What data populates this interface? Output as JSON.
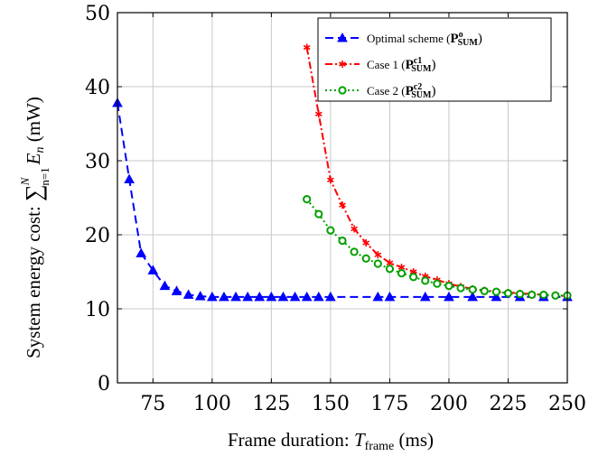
{
  "chart_data": {
    "type": "line",
    "xlabel": "Frame duration: T_frame (ms)",
    "ylabel": "System energy cost: ∑_{n=1}^{N} E_n (mW)",
    "xlim": [
      60,
      250
    ],
    "ylim": [
      0,
      50
    ],
    "x_ticks": [
      75,
      100,
      125,
      150,
      175,
      200,
      225,
      250
    ],
    "y_ticks": [
      0,
      10,
      20,
      30,
      40,
      50
    ],
    "grid": true,
    "legend_position": "top-right",
    "series": [
      {
        "name": "Optimal scheme (P^o_SUM)",
        "name_main": "Optimal scheme (",
        "name_sym": "P",
        "name_sup": "o",
        "name_sub": "SUM",
        "name_close": ")",
        "color": "#0000ff",
        "line_style": "dashed",
        "marker": "triangle",
        "x": [
          60,
          65,
          70,
          75,
          80,
          85,
          90,
          95,
          100,
          105,
          110,
          115,
          120,
          125,
          130,
          135,
          140,
          145,
          150,
          170,
          175,
          190,
          200,
          210,
          220,
          230,
          240,
          250
        ],
        "y": [
          37.8,
          27.5,
          17.5,
          15.2,
          13.1,
          12.4,
          11.9,
          11.7,
          11.6,
          11.6,
          11.6,
          11.6,
          11.6,
          11.6,
          11.6,
          11.6,
          11.6,
          11.6,
          11.6,
          11.6,
          11.6,
          11.6,
          11.6,
          11.6,
          11.6,
          11.6,
          11.6,
          11.6
        ]
      },
      {
        "name": "Case 1 (P^c1_SUM)",
        "name_main": "Case 1 (",
        "name_sym": "P",
        "name_sup": "c1",
        "name_sub": "SUM",
        "name_close": ")",
        "color": "#ff0000",
        "line_style": "dashdot",
        "marker": "star",
        "x": [
          140,
          145,
          150,
          155,
          160,
          165,
          170,
          175,
          180,
          185,
          190,
          195,
          200,
          205,
          210,
          215,
          220,
          225,
          230,
          235,
          240,
          245,
          250
        ],
        "y": [
          45.3,
          36.3,
          27.4,
          24.0,
          20.8,
          18.9,
          17.3,
          16.2,
          15.6,
          15.0,
          14.4,
          13.9,
          13.4,
          13.0,
          12.7,
          12.5,
          12.3,
          12.2,
          12.1,
          12.0,
          11.9,
          11.8,
          11.7
        ]
      },
      {
        "name": "Case 2 (P^c2_SUM)",
        "name_main": "Case 2 (",
        "name_sym": "P",
        "name_sup": "c2",
        "name_sub": "SUM",
        "name_close": ")",
        "color": "#00a000",
        "line_style": "dotted",
        "marker": "circle",
        "x": [
          140,
          145,
          150,
          155,
          160,
          165,
          170,
          175,
          180,
          185,
          190,
          195,
          200,
          205,
          210,
          215,
          220,
          225,
          230,
          235,
          240,
          245,
          250
        ],
        "y": [
          24.8,
          22.8,
          20.6,
          19.2,
          17.7,
          16.8,
          16.1,
          15.4,
          14.8,
          14.3,
          13.8,
          13.4,
          13.1,
          12.8,
          12.6,
          12.4,
          12.3,
          12.1,
          12.0,
          11.9,
          11.9,
          11.8,
          11.8
        ]
      }
    ]
  }
}
